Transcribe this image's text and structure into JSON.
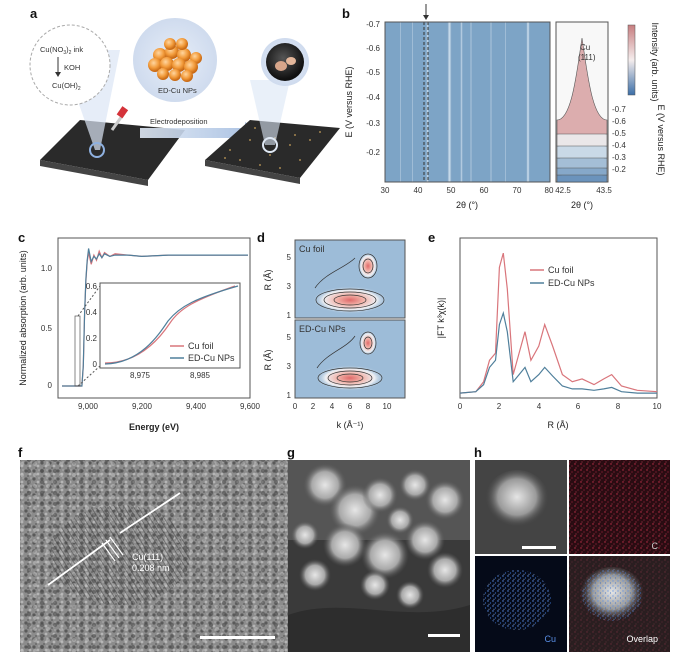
{
  "panels": {
    "a": {
      "label": "a",
      "ink_line1": "Cu(NO",
      "ink_sub": "3",
      "ink_line1b": ")",
      "ink_sub2": "2",
      "ink_line1c": " ink",
      "koh": "KOH",
      "cuoh_line": "Cu(OH)",
      "cuoh_sub": "2",
      "np_label": "ED-Cu NPs",
      "arrow_label": "Electrodeposition"
    },
    "b": {
      "label": "b",
      "ylabel": "E (V versus RHE)",
      "xlabel": "2θ (°)",
      "xticks": [
        "30",
        "40",
        "50",
        "60",
        "70",
        "80"
      ],
      "yticks": [
        "-0.7",
        "-0.6",
        "-0.5",
        "-0.4",
        "-0.3",
        "-0.2"
      ],
      "side_peak_line1": "Cu",
      "side_peak_line2": "(111)",
      "side_xticks": [
        "42.5",
        "43.5"
      ],
      "side_xlabel": "2θ (°)",
      "side_yticks": [
        "-0.7",
        "-0.6",
        "-0.5",
        "-0.4",
        "-0.3",
        "-0.2"
      ],
      "side_ylabel": "E (V versus RHE)",
      "cbar_label": "Intensity (arb. units)"
    },
    "c": {
      "label": "c",
      "ylabel": "Normalized absorption (arb. units)",
      "xlabel": "Energy (eV)",
      "xticks": [
        "9,000",
        "9,200",
        "9,400",
        "9,600"
      ],
      "yticks": [
        "0",
        "0.5",
        "1.0"
      ],
      "inset_yticks": [
        "0",
        "0.2",
        "0.4",
        "0.6"
      ],
      "inset_xticks": [
        "8,975",
        "8,985"
      ],
      "legend": [
        "Cu foil",
        "ED-Cu NPs"
      ]
    },
    "d": {
      "label": "d",
      "top_title": "Cu foil",
      "bottom_title": "ED-Cu NPs",
      "ylabel": "R (Å)",
      "yticks": [
        "1",
        "3",
        "5"
      ],
      "xticks": [
        "0",
        "2",
        "4",
        "6",
        "8",
        "10"
      ],
      "xlabel": "k (Å⁻¹)"
    },
    "e": {
      "label": "e",
      "ylabel": "|FT k³χ(k)|",
      "xlabel": "R (Å)",
      "xticks": [
        "0",
        "2",
        "4",
        "6",
        "8",
        "10"
      ],
      "legend": [
        "Cu foil",
        "ED-Cu NPs"
      ]
    },
    "f": {
      "label": "f",
      "annot_line1": "Cu(111)",
      "annot_line2": "0.208 nm"
    },
    "g": {
      "label": "g"
    },
    "h": {
      "label": "h",
      "tile_c": "C",
      "tile_cu": "Cu",
      "tile_overlap": "Overlap"
    }
  },
  "colors": {
    "cu_foil": "#d9757b",
    "ed_cu": "#4f7f9b",
    "heatmap_bg": "#7da4c6",
    "eds_c": "#c0304a",
    "eds_cu": "#4a7fd6"
  },
  "chart_data": [
    {
      "type": "line",
      "panel": "c",
      "xlabel": "Energy (eV)",
      "ylabel": "Normalized absorption (arb. units)",
      "xlim": [
        8900,
        9600
      ],
      "ylim": [
        0,
        1.1
      ],
      "series": [
        {
          "name": "Cu foil",
          "x": [
            8900,
            8975,
            8980,
            8985,
            8990,
            8995,
            9000,
            9010,
            9020,
            9030,
            9040,
            9050,
            9060,
            9080,
            9100,
            9150,
            9200,
            9300,
            9400,
            9500,
            9600
          ],
          "y": [
            0,
            0,
            0.15,
            0.55,
            0.8,
            0.95,
            1.02,
            0.93,
            1.0,
            0.96,
            1.03,
            0.98,
            1.02,
            0.99,
            1.01,
            1.0,
            0.99,
            1.0,
            1.0,
            1.0,
            1.0
          ]
        },
        {
          "name": "ED-Cu NPs",
          "x": [
            8900,
            8975,
            8980,
            8985,
            8990,
            8995,
            9000,
            9010,
            9020,
            9030,
            9040,
            9050,
            9060,
            9080,
            9100,
            9150,
            9200,
            9300,
            9400,
            9500,
            9600
          ],
          "y": [
            0,
            0,
            0.16,
            0.56,
            0.82,
            0.96,
            1.05,
            0.95,
            0.99,
            0.97,
            1.01,
            0.98,
            1.01,
            0.99,
            1.0,
            1.0,
            0.99,
            1.0,
            1.0,
            1.0,
            1.0
          ]
        }
      ]
    },
    {
      "type": "line",
      "panel": "e",
      "xlabel": "R (Å)",
      "ylabel": "|FT k³χ(k)|",
      "xlim": [
        0,
        10
      ],
      "series": [
        {
          "name": "Cu foil",
          "x": [
            0,
            0.8,
            1.2,
            1.5,
            1.8,
            2.0,
            2.2,
            2.4,
            2.7,
            3.0,
            3.3,
            3.6,
            4.0,
            4.3,
            4.7,
            5.2,
            5.7,
            6.2,
            6.8,
            7.3,
            7.7,
            8.2,
            9,
            10
          ],
          "y": [
            0.02,
            0.03,
            0.1,
            0.25,
            0.3,
            0.9,
            1.0,
            0.75,
            0.15,
            0.3,
            0.45,
            0.25,
            0.35,
            0.5,
            0.35,
            0.15,
            0.1,
            0.12,
            0.08,
            0.12,
            0.15,
            0.07,
            0.04,
            0.03
          ]
        },
        {
          "name": "ED-Cu NPs",
          "x": [
            0,
            0.8,
            1.2,
            1.5,
            1.8,
            2.0,
            2.2,
            2.4,
            2.7,
            3.0,
            3.3,
            3.6,
            4.0,
            4.3,
            4.7,
            5.2,
            5.7,
            6.2,
            6.8,
            7.3,
            7.7,
            8.2,
            9,
            10
          ],
          "y": [
            0.02,
            0.03,
            0.08,
            0.2,
            0.25,
            0.5,
            0.58,
            0.45,
            0.1,
            0.15,
            0.2,
            0.1,
            0.15,
            0.2,
            0.14,
            0.07,
            0.05,
            0.05,
            0.04,
            0.05,
            0.06,
            0.03,
            0.02,
            0.02
          ]
        }
      ]
    }
  ]
}
